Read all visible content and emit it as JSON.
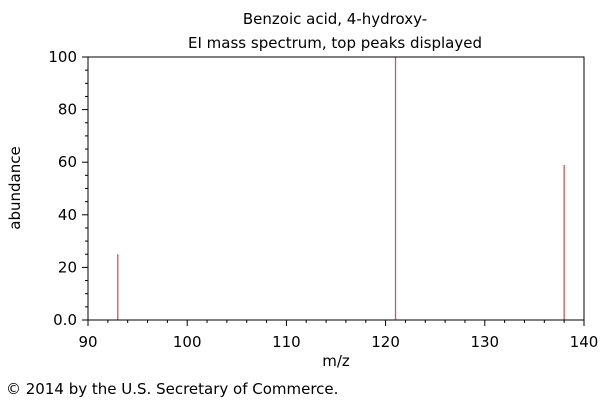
{
  "chart_data": {
    "type": "bar",
    "title": "Benzoic acid, 4-hydroxy-",
    "subtitle": "EI mass spectrum, top peaks displayed",
    "xlabel": "m/z",
    "ylabel": "abundance",
    "xlim": [
      90,
      140
    ],
    "ylim": [
      0,
      100
    ],
    "x_ticks": [
      "90",
      "100",
      "110",
      "120",
      "130",
      "140"
    ],
    "y_ticks": [
      "0.0",
      "20",
      "40",
      "60",
      "80",
      "100"
    ],
    "x": [
      93,
      121,
      138
    ],
    "values": [
      25,
      100,
      59
    ],
    "bar_color": "#e05050",
    "grid": false,
    "legend": "none"
  },
  "footer": {
    "copyright": "© 2014 by the U.S. Secretary of Commerce."
  }
}
